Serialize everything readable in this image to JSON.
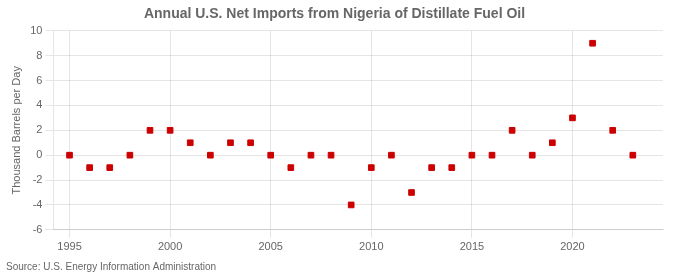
{
  "chart_data": {
    "type": "scatter",
    "title": "Annual U.S. Net Imports from Nigeria of Distillate Fuel Oil",
    "ylabel": "Thousand Barrels per Day",
    "annotations": [
      "Source: U.S. Energy Information Administration"
    ],
    "x": [
      1995,
      1996,
      1997,
      1998,
      1999,
      2000,
      2001,
      2002,
      2003,
      2004,
      2005,
      2006,
      2007,
      2008,
      2009,
      2010,
      2011,
      2012,
      2013,
      2014,
      2015,
      2016,
      2017,
      2018,
      2019,
      2020,
      2021,
      2022,
      2023
    ],
    "values": [
      0,
      -1,
      -1,
      0,
      2,
      2,
      1,
      0,
      1,
      1,
      0,
      -1,
      0,
      0,
      -4,
      -1,
      0,
      -3,
      -1,
      -1,
      0,
      0,
      2,
      0,
      1,
      3,
      9,
      2,
      0
    ],
    "color": "#CC0000",
    "marker": "square",
    "xlim": [
      1994.2,
      2024.5
    ],
    "xticks": [
      1995,
      2000,
      2005,
      2010,
      2015,
      2020
    ],
    "ylim": [
      -6,
      10
    ],
    "yticks": [
      -6,
      -4,
      -2,
      0,
      2,
      4,
      6,
      8,
      10
    ],
    "grid": true
  }
}
